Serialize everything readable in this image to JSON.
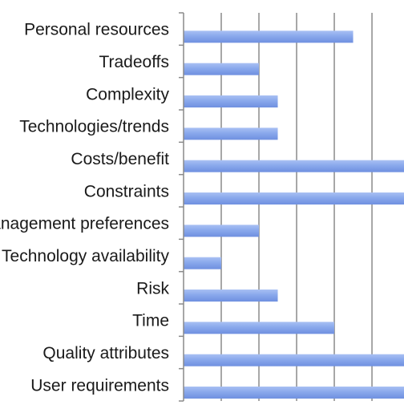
{
  "chart_data": {
    "type": "bar",
    "orientation": "horizontal",
    "categories": [
      "Personal resources",
      "Tradeoffs",
      "Complexity",
      "Technologies/trends",
      "Costs/benefit",
      "Constraints",
      "Management preferences",
      "Technology availability",
      "Risk",
      "Time",
      "Quality attributes",
      "User requirements"
    ],
    "values": [
      9,
      4,
      5,
      5,
      12,
      12,
      4,
      2,
      5,
      8,
      12,
      12
    ],
    "xlim": [
      0,
      11.7
    ],
    "grid": true,
    "bar_color": "#7b9be6",
    "bar_highlight": "#a9c0f3",
    "grid_color": "#8a8a8a"
  }
}
